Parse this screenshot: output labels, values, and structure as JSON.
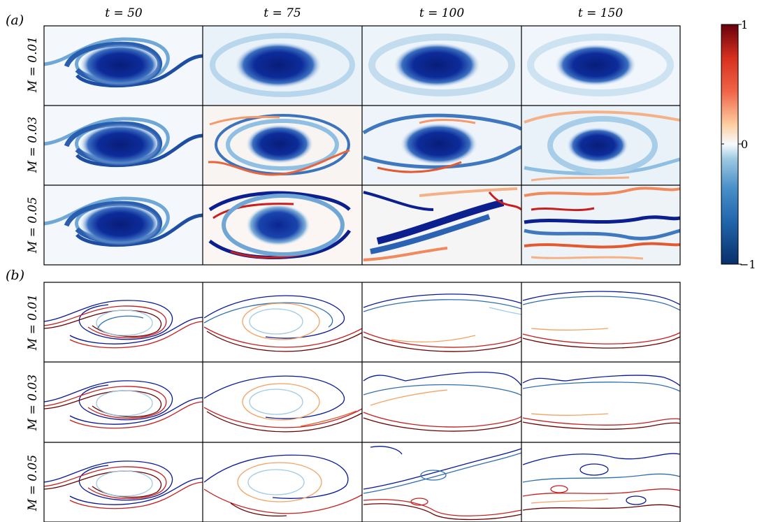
{
  "panel_labels": [
    "(a)",
    "(b)"
  ],
  "columns": [
    "t = 50",
    "t = 75",
    "t = 100",
    "t = 150"
  ],
  "rows": [
    "M = 0.01",
    "M = 0.03",
    "M = 0.05"
  ],
  "colorbar": {
    "ticks": [
      "1",
      "0",
      "−1"
    ],
    "colors": [
      "#08306b",
      "#2166ac",
      "#4a90c9",
      "#9ecae1",
      "#f7fbff",
      "#fdd0a2",
      "#ef6548",
      "#d7301f",
      "#67000d"
    ]
  },
  "contour_colors": [
    "#08189a",
    "#2f6fb0",
    "#9fcbe6",
    "#f4a261",
    "#c81e1e",
    "#6b0000"
  ]
}
